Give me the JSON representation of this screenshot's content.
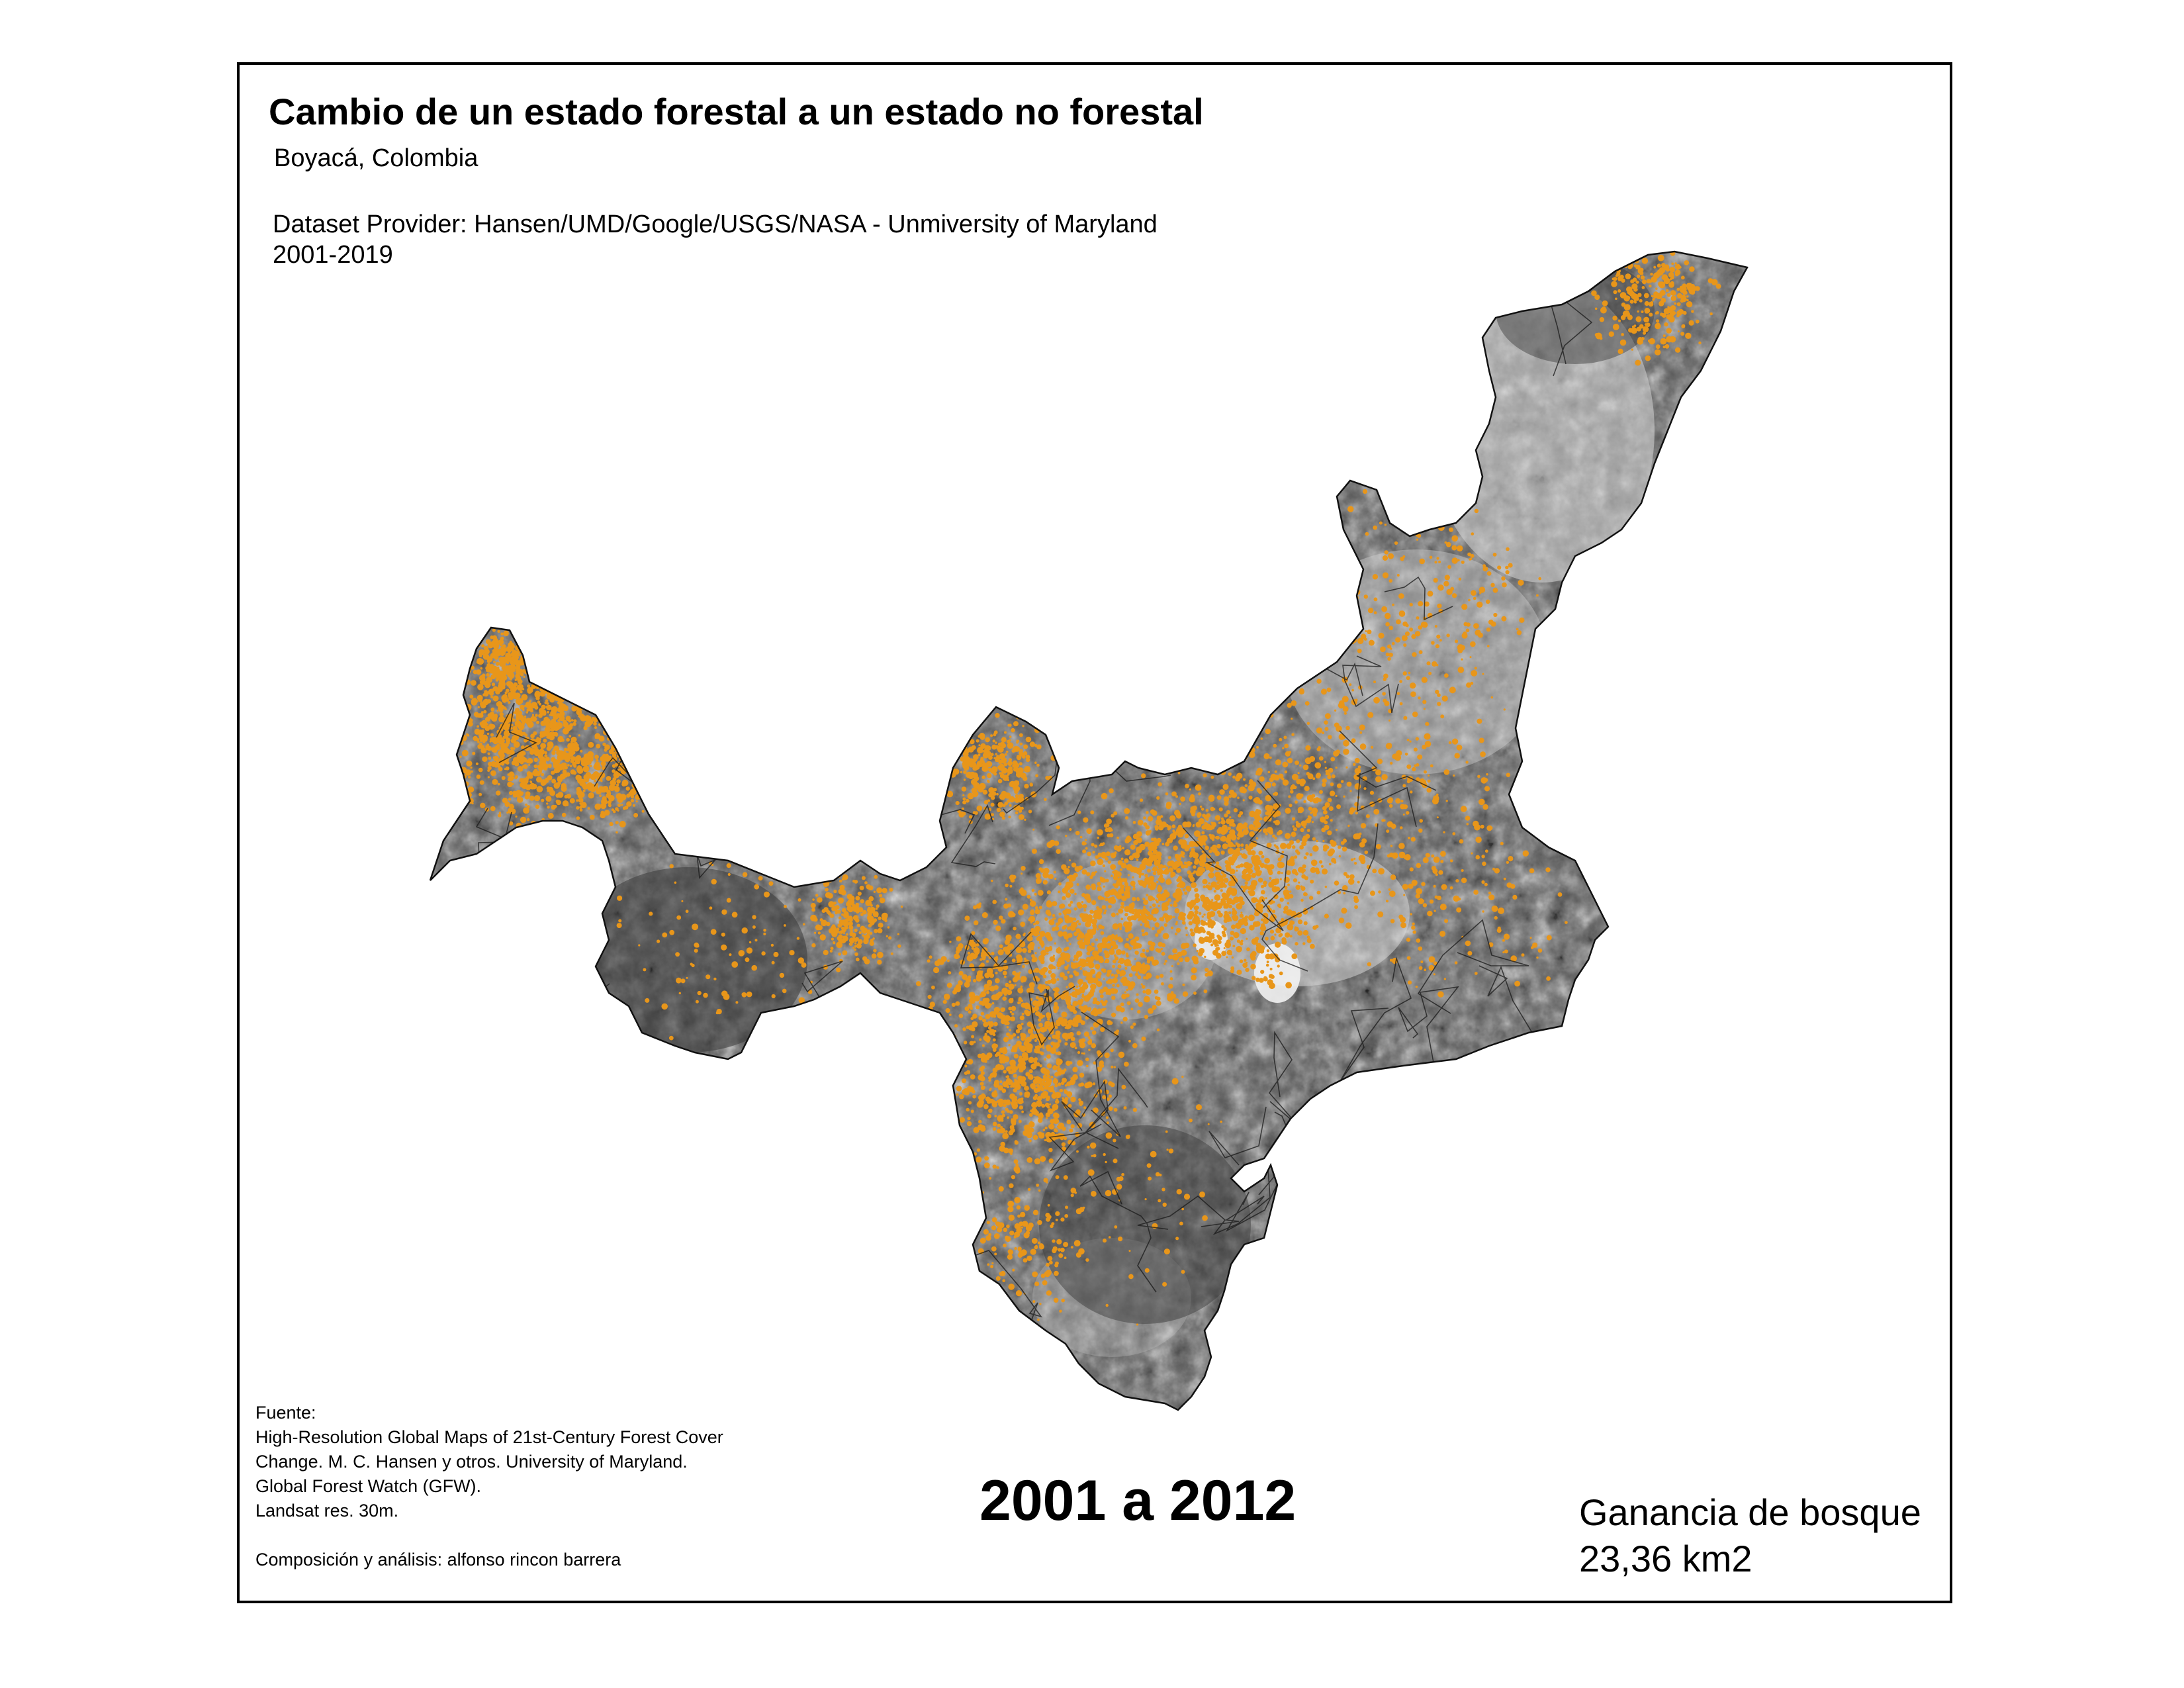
{
  "header": {
    "title": "Cambio de un estado forestal a un estado no forestal",
    "subtitle": "Boyacá, Colombia",
    "provider": "Dataset Provider: Hansen/UMD/Google/USGS/NASA - Unmiversity of Maryland",
    "years": "2001-2019"
  },
  "source": {
    "heading": "Fuente:",
    "line1": "High-Resolution Global Maps of 21st-Century Forest Cover",
    "line2": "Change.  M. C. Hansen y otros.   University of Maryland.",
    "line3": "Global Forest Watch (GFW).",
    "line4": "Landsat res. 30m.",
    "credit": "Composición y análisis: alfonso rincon barrera"
  },
  "period": "2001 a 2012",
  "gain": {
    "label": "Ganancia de bosque",
    "value": "23,36 km2"
  },
  "colors": {
    "terrain_dark": "#4a4a4a",
    "terrain_light": "#bdbdbd",
    "forest_change": "#e8961a",
    "border": "#000000"
  }
}
